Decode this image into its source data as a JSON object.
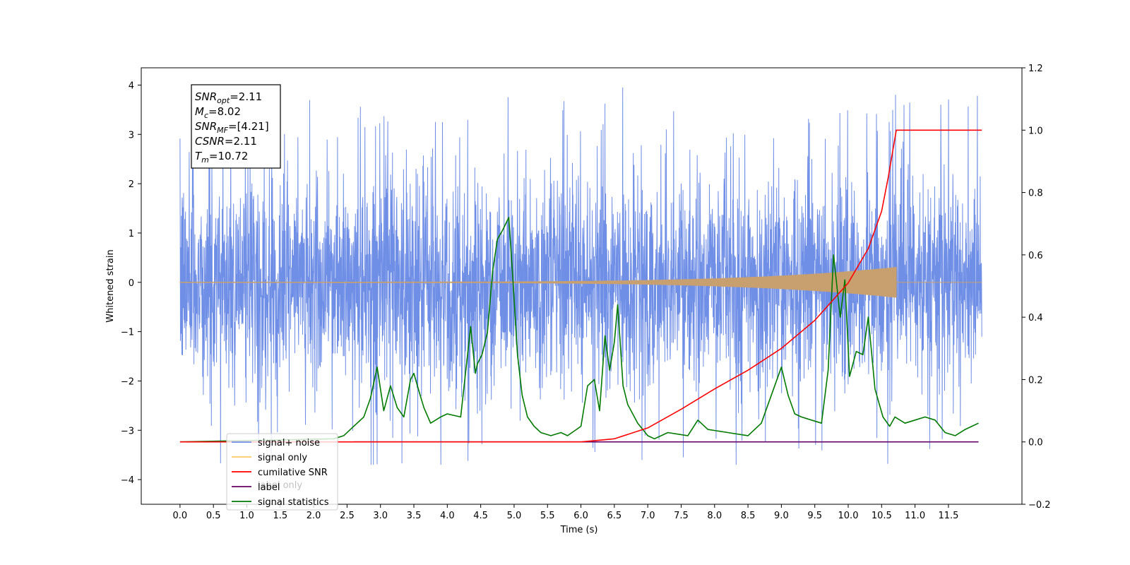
{
  "chart_data": {
    "type": "line",
    "xlabel": "Time (s)",
    "ylabel": "Whitened strain",
    "xlim": [
      -0.58,
      12.6
    ],
    "ylim": [
      -4.5,
      4.35
    ],
    "y2lim": [
      -0.2,
      1.2
    ],
    "xticks": [
      "0.0",
      "0.5",
      "1.0",
      "1.5",
      "2.0",
      "2.5",
      "3.0",
      "3.5",
      "4.0",
      "4.5",
      "5.0",
      "5.5",
      "6.0",
      "6.5",
      "7.0",
      "7.5",
      "8.0",
      "8.5",
      "9.0",
      "9.5",
      "10.0",
      "10.5",
      "11.0",
      "11.5"
    ],
    "yticks": [
      "4",
      "3",
      "2",
      "1",
      "0",
      "−1",
      "−2",
      "−3",
      "−4"
    ],
    "y2ticks": [
      "1.2",
      "1.0",
      "0.8",
      "0.6",
      "0.4",
      "0.2",
      "0.0",
      "−0.2"
    ],
    "annotation": {
      "lines": [
        {
          "sym": "SNR",
          "sub": "opt",
          "val": "=2.11"
        },
        {
          "sym": "M",
          "sub": "c",
          "val": "=8.02"
        },
        {
          "sym": "SNR",
          "sub": "MF",
          "val": "=[4.21]"
        },
        {
          "sym": "CSNR",
          "sub": "",
          "val": "=2.11"
        },
        {
          "sym": "T",
          "sub": "m",
          "val": "=10.72"
        }
      ]
    },
    "legend": {
      "location": "lower-left",
      "entries": [
        {
          "label": "signal+ noise",
          "color": "#6f8ee6"
        },
        {
          "label": "signal only",
          "color": "#ffc966"
        },
        {
          "label": "cumilative SNR",
          "color": "#ff0000"
        },
        {
          "label": "label",
          "color": "#660066"
        },
        {
          "label": "signal statistics",
          "color": "#007a00"
        }
      ],
      "hidden_behind_legend": [
        "label only"
      ]
    },
    "series": [
      {
        "name": "signal+ noise",
        "axis": "left",
        "color": "#6f8ee6",
        "x_range": [
          0.0,
          12.0
        ],
        "band": [
          -2.6,
          2.6
        ],
        "peaks_up_max": 3.95,
        "peaks_down_min": -3.7
      },
      {
        "name": "signal only",
        "axis": "left",
        "color": "#c8a070",
        "x_range": [
          0.0,
          10.72
        ],
        "envelope_end": 0.3,
        "flat_until": 10.72
      },
      {
        "name": "cumilative SNR",
        "axis": "right",
        "color": "#ff0000",
        "x": [
          0.0,
          5.0,
          6.0,
          6.5,
          7.0,
          7.5,
          8.0,
          8.5,
          9.0,
          9.5,
          10.0,
          10.3,
          10.5,
          10.6,
          10.72,
          12.0
        ],
        "y": [
          0.0,
          0.0,
          0.0,
          0.01,
          0.045,
          0.105,
          0.17,
          0.23,
          0.3,
          0.39,
          0.51,
          0.62,
          0.74,
          0.85,
          1.0,
          1.0
        ]
      },
      {
        "name": "label",
        "axis": "right",
        "color": "#660066",
        "x": [
          2.6,
          11.95
        ],
        "y": [
          0.0,
          0.0
        ]
      },
      {
        "name": "signal statistics",
        "axis": "right",
        "color": "#007a00",
        "x": [
          0.0,
          2.3,
          2.45,
          2.6,
          2.75,
          2.85,
          2.95,
          3.05,
          3.15,
          3.25,
          3.35,
          3.45,
          3.5,
          3.58,
          3.65,
          3.75,
          3.9,
          4.0,
          4.2,
          4.35,
          4.42,
          4.45,
          4.52,
          4.6,
          4.68,
          4.75,
          4.83,
          4.92,
          4.98,
          5.05,
          5.12,
          5.2,
          5.3,
          5.4,
          5.55,
          5.7,
          5.8,
          6.0,
          6.1,
          6.2,
          6.28,
          6.36,
          6.43,
          6.5,
          6.55,
          6.63,
          6.7,
          6.85,
          7.0,
          7.1,
          7.3,
          7.6,
          7.75,
          7.9,
          8.2,
          8.5,
          8.7,
          8.9,
          9.0,
          9.1,
          9.2,
          9.3,
          9.45,
          9.6,
          9.7,
          9.78,
          9.88,
          9.95,
          10.02,
          10.12,
          10.22,
          10.3,
          10.4,
          10.52,
          10.62,
          10.7,
          10.85,
          11.0,
          11.15,
          11.3,
          11.45,
          11.6,
          11.75,
          11.85,
          11.95
        ],
        "y": [
          0.0,
          0.01,
          0.02,
          0.05,
          0.08,
          0.14,
          0.24,
          0.1,
          0.18,
          0.11,
          0.08,
          0.2,
          0.22,
          0.16,
          0.11,
          0.06,
          0.08,
          0.09,
          0.08,
          0.37,
          0.22,
          0.25,
          0.28,
          0.35,
          0.55,
          0.65,
          0.68,
          0.72,
          0.53,
          0.28,
          0.15,
          0.08,
          0.05,
          0.03,
          0.02,
          0.03,
          0.02,
          0.05,
          0.18,
          0.2,
          0.1,
          0.34,
          0.23,
          0.32,
          0.44,
          0.18,
          0.12,
          0.06,
          0.02,
          0.01,
          0.03,
          0.02,
          0.07,
          0.04,
          0.03,
          0.02,
          0.06,
          0.18,
          0.24,
          0.15,
          0.09,
          0.08,
          0.07,
          0.06,
          0.23,
          0.6,
          0.4,
          0.52,
          0.21,
          0.29,
          0.28,
          0.4,
          0.17,
          0.08,
          0.05,
          0.08,
          0.06,
          0.07,
          0.08,
          0.07,
          0.03,
          0.02,
          0.04,
          0.05,
          0.06
        ]
      }
    ]
  }
}
